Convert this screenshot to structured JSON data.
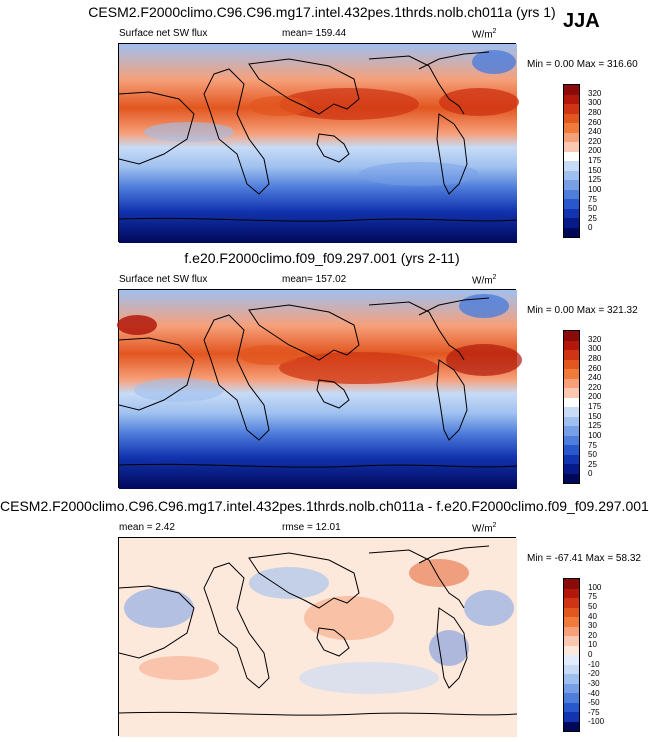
{
  "season": "JJA",
  "panels": [
    {
      "id": "p1",
      "title": "CESM2.F2000climo.C96.C96.mg17.intel.432pes.1thrds.nolb.ch011a (yrs 1)",
      "variable": "Surface net SW flux",
      "stat1": "mean= 159.44",
      "stat2": "",
      "units": "W/m",
      "units_exp": "2",
      "minmax": "Min =   0.00 Max = 316.60",
      "levels": [
        "320",
        "300",
        "280",
        "260",
        "240",
        "220",
        "200",
        "175",
        "150",
        "125",
        "100",
        "75",
        "50",
        "25",
        "0"
      ],
      "colors": [
        "#8b0a0a",
        "#b2190c",
        "#cf3514",
        "#e2561f",
        "#ef7a3a",
        "#f6a07a",
        "#fac7b0",
        "#ffffff",
        "#c7dbf7",
        "#9fc0ef",
        "#779fe6",
        "#4e7ddb",
        "#2958cc",
        "#1234b0",
        "#061a8a",
        "#00085a"
      ]
    },
    {
      "id": "p2",
      "title": "f.e20.F2000climo.f09_f09.297.001 (yrs 2-11)",
      "variable": "Surface net SW flux",
      "stat1": "mean= 157.02",
      "stat2": "",
      "units": "W/m",
      "units_exp": "2",
      "minmax": "Min =   0.00 Max = 321.32",
      "levels": [
        "320",
        "300",
        "280",
        "260",
        "240",
        "220",
        "200",
        "175",
        "150",
        "125",
        "100",
        "75",
        "50",
        "25",
        "0"
      ],
      "colors": [
        "#8b0a0a",
        "#b2190c",
        "#cf3514",
        "#e2561f",
        "#ef7a3a",
        "#f6a07a",
        "#fac7b0",
        "#ffffff",
        "#c7dbf7",
        "#9fc0ef",
        "#779fe6",
        "#4e7ddb",
        "#2958cc",
        "#1234b0",
        "#061a8a",
        "#00085a"
      ]
    },
    {
      "id": "p3",
      "title": "CESM2.F2000climo.C96.C96.mg17.intel.432pes.1thrds.nolb.ch011a - f.e20.F2000climo.f09_f09.297.001",
      "variable": "",
      "stat1": "mean =   2.42",
      "stat2": "rmse =  12.01",
      "units": "W/m",
      "units_exp": "2",
      "minmax": "Min = -67.41 Max =  58.32",
      "levels": [
        "100",
        "75",
        "50",
        "40",
        "30",
        "20",
        "10",
        "0",
        "-10",
        "-20",
        "-30",
        "-40",
        "-50",
        "-75",
        "-100"
      ],
      "colors": [
        "#8b0a0a",
        "#b2190c",
        "#cf3514",
        "#e2561f",
        "#ef7a3a",
        "#f6a07a",
        "#fac7b0",
        "#fde8dc",
        "#e2ecfa",
        "#c7dbf7",
        "#9fc0ef",
        "#779fe6",
        "#4e7ddb",
        "#2958cc",
        "#1234b0",
        "#00085a"
      ]
    }
  ]
}
